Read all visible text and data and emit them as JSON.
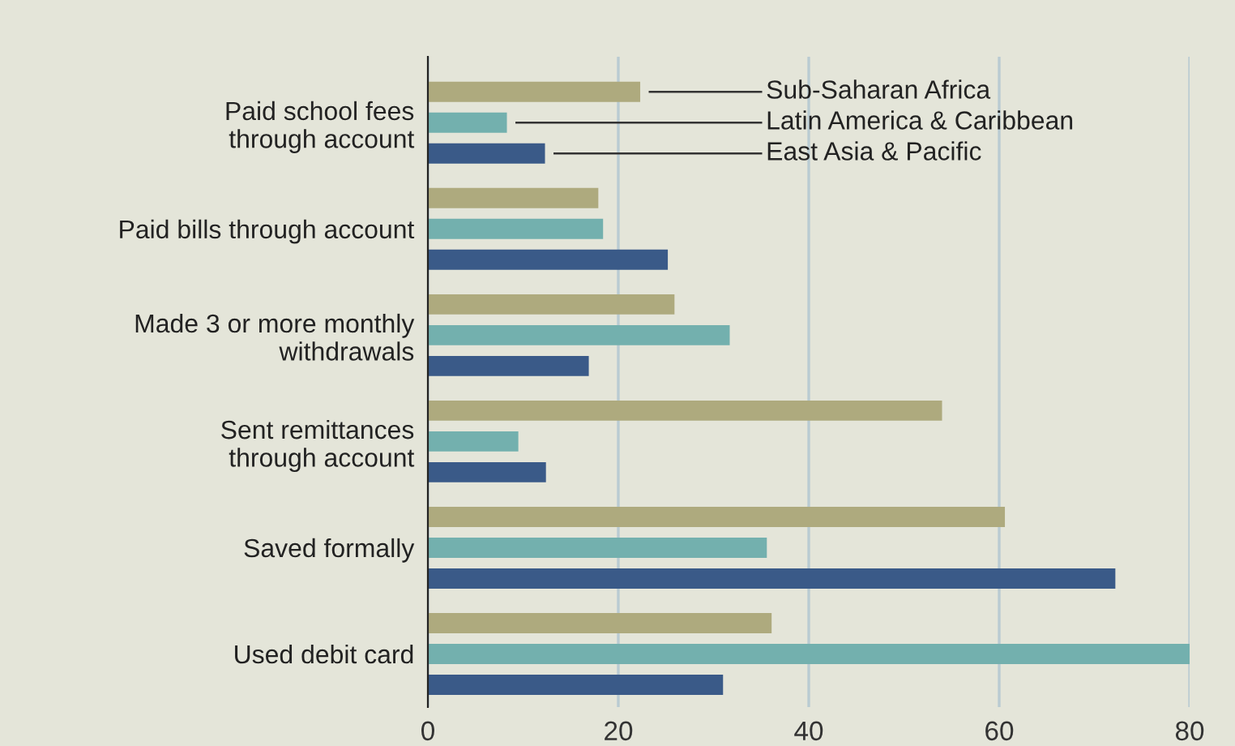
{
  "chart_data": {
    "type": "bar",
    "orientation": "horizontal",
    "categories": [
      "Paid school fees\nthrough account",
      "Paid bills through account",
      "Made 3 or more monthly\nwithdrawals",
      "Sent remittances\nthrough account",
      "Saved formally",
      "Used debit card"
    ],
    "series": [
      {
        "name": "Sub-Saharan Africa",
        "color": "#aeaa7e",
        "values": [
          22.3,
          17.9,
          25.9,
          54.0,
          60.6,
          36.1
        ]
      },
      {
        "name": "Latin America & Caribbean",
        "color": "#73b0ae",
        "values": [
          8.3,
          18.4,
          31.7,
          9.5,
          35.6,
          80.0
        ]
      },
      {
        "name": "East Asia & Pacific",
        "color": "#3a5a88",
        "values": [
          12.3,
          25.2,
          16.9,
          12.4,
          72.2,
          31.0
        ]
      }
    ],
    "xlim": [
      0,
      80
    ],
    "xticks": [
      0,
      20,
      40,
      60,
      80
    ],
    "grid": "x"
  }
}
